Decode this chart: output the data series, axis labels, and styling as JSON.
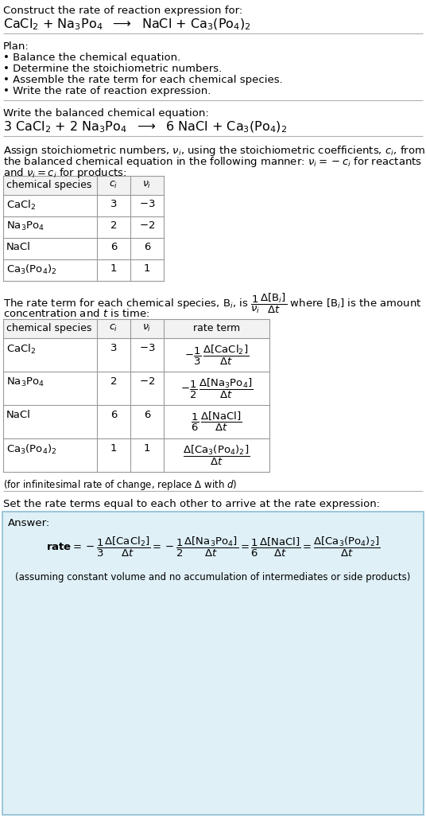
{
  "bg_color": "#ffffff",
  "answer_bg_color": "#e8f4f8",
  "answer_border_color": "#8bbfd4",
  "text_color": "#000000",
  "section1_title": "Construct the rate of reaction expression for:",
  "section1_eq": "CaCl$_2$ + Na$_3$Po$_4$  $\\longrightarrow$  NaCl + Ca$_3$(Po$_4$)$_2$",
  "plan_title": "Plan:",
  "plan_items": [
    "• Balance the chemical equation.",
    "• Determine the stoichiometric numbers.",
    "• Assemble the rate term for each chemical species.",
    "• Write the rate of reaction expression."
  ],
  "balanced_title": "Write the balanced chemical equation:",
  "balanced_eq": "3 CaCl$_2$ + 2 Na$_3$Po$_4$  $\\longrightarrow$  6 NaCl + Ca$_3$(Po$_4$)$_2$",
  "stoich_text1": "Assign stoichiometric numbers, $\\nu_i$, using the stoichiometric coefficients, $c_i$, from",
  "stoich_text2": "the balanced chemical equation in the following manner: $\\nu_i = -c_i$ for reactants",
  "stoich_text3": "and $\\nu_i = c_i$ for products:",
  "table1_headers": [
    "chemical species",
    "$c_i$",
    "$\\nu_i$"
  ],
  "table1_rows": [
    [
      "CaCl$_2$",
      "3",
      "$-3$"
    ],
    [
      "Na$_3$Po$_4$",
      "2",
      "$-2$"
    ],
    [
      "NaCl",
      "6",
      "6"
    ],
    [
      "Ca$_3$(Po$_4$)$_2$",
      "1",
      "1"
    ]
  ],
  "infinitesimal_note": "(for infinitesimal rate of change, replace Δ with $d$)",
  "set_rate_text": "Set the rate terms equal to each other to arrive at the rate expression:",
  "answer_label": "Answer:",
  "answer_note": "(assuming constant volume and no accumulation of intermediates or side products)"
}
